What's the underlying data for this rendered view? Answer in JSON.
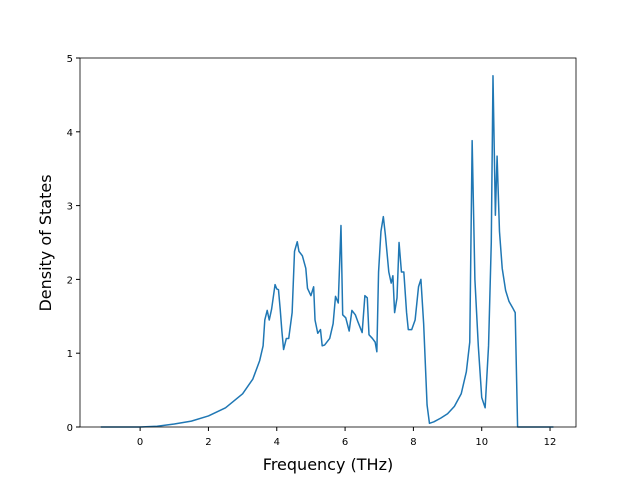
{
  "chart_data": {
    "type": "line",
    "xlabel": "Frequency (THz)",
    "ylabel": "Density of States",
    "color": "#1f77b4",
    "x": [
      -1.15,
      -0.5,
      0,
      0.5,
      1,
      1.5,
      2,
      2.5,
      3,
      3.3,
      3.5,
      3.6,
      3.65,
      3.72,
      3.78,
      3.85,
      3.95,
      4.0,
      4.05,
      4.1,
      4.15,
      4.2,
      4.28,
      4.35,
      4.45,
      4.52,
      4.6,
      4.65,
      4.75,
      4.85,
      4.9,
      5.0,
      5.08,
      5.12,
      5.2,
      5.28,
      5.33,
      5.4,
      5.55,
      5.65,
      5.72,
      5.8,
      5.88,
      5.93,
      6.02,
      6.12,
      6.2,
      6.3,
      6.38,
      6.5,
      6.58,
      6.65,
      6.7,
      6.8,
      6.88,
      6.93,
      6.98,
      7.05,
      7.12,
      7.18,
      7.28,
      7.35,
      7.4,
      7.45,
      7.52,
      7.58,
      7.65,
      7.72,
      7.8,
      7.85,
      7.95,
      8.05,
      8.15,
      8.22,
      8.3,
      8.4,
      8.47,
      8.6,
      8.8,
      9.0,
      9.2,
      9.4,
      9.55,
      9.65,
      9.72,
      9.8,
      9.9,
      10.0,
      10.1,
      10.2,
      10.28,
      10.33,
      10.4,
      10.45,
      10.52,
      10.6,
      10.7,
      10.8,
      10.9,
      10.98,
      11.05,
      11.5,
      12.1
    ],
    "values": [
      0,
      0,
      0,
      0.01,
      0.04,
      0.08,
      0.15,
      0.26,
      0.45,
      0.65,
      0.9,
      1.1,
      1.45,
      1.58,
      1.45,
      1.6,
      1.93,
      1.87,
      1.86,
      1.6,
      1.3,
      1.05,
      1.2,
      1.2,
      1.55,
      2.38,
      2.51,
      2.38,
      2.32,
      2.15,
      1.88,
      1.78,
      1.9,
      1.45,
      1.27,
      1.32,
      1.1,
      1.11,
      1.2,
      1.4,
      1.77,
      1.68,
      2.73,
      1.52,
      1.48,
      1.3,
      1.58,
      1.52,
      1.42,
      1.28,
      1.78,
      1.75,
      1.25,
      1.2,
      1.15,
      1.02,
      2.1,
      2.65,
      2.85,
      2.6,
      2.1,
      1.95,
      2.05,
      1.55,
      1.75,
      2.5,
      2.1,
      2.1,
      1.55,
      1.32,
      1.32,
      1.45,
      1.9,
      2.0,
      1.4,
      0.3,
      0.05,
      0.07,
      0.12,
      0.18,
      0.28,
      0.45,
      0.75,
      1.15,
      3.88,
      2.0,
      1.1,
      0.4,
      0.26,
      1.1,
      2.5,
      4.76,
      2.87,
      3.67,
      2.65,
      2.15,
      1.85,
      1.7,
      1.62,
      1.55,
      0,
      0,
      0
    ],
    "xlim": [
      -1.76,
      12.76
    ],
    "ylim": [
      0,
      5
    ],
    "xticks": [
      0,
      2,
      4,
      6,
      8,
      10,
      12
    ],
    "yticks": [
      0,
      1,
      2,
      3,
      4,
      5
    ]
  }
}
